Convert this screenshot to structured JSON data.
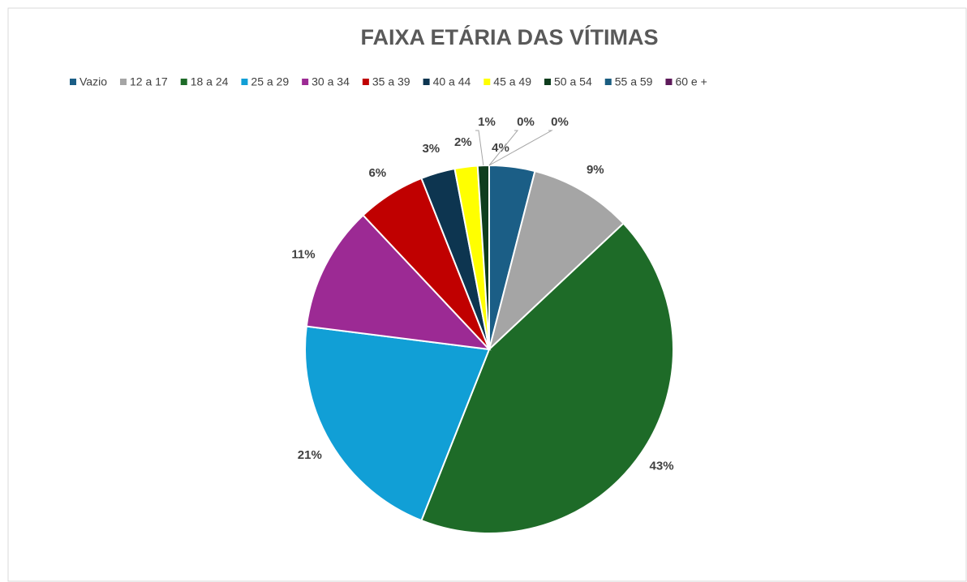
{
  "chart_data": {
    "type": "pie",
    "title": "FAIXA ETÁRIA DAS VÍTIMAS",
    "categories": [
      "Vazio",
      "12 a 17",
      "18 a 24",
      "25 a 29",
      "30 a 34",
      "35 a 39",
      "40 a 44",
      "45 a 49",
      "50 a 54",
      "55 a 59",
      "60 e +"
    ],
    "values": [
      4,
      9,
      43,
      21,
      11,
      6,
      3,
      2,
      1,
      0,
      0
    ],
    "value_labels": [
      "4%",
      "9%",
      "43%",
      "21%",
      "11%",
      "6%",
      "3%",
      "2%",
      "1%",
      "0%",
      "0%"
    ],
    "colors": [
      "#1b5e86",
      "#a5a5a5",
      "#1e6b28",
      "#119fd6",
      "#9c2a94",
      "#c00000",
      "#0d3550",
      "#ffff00",
      "#0f3d1d",
      "#1a5d80",
      "#5d1a5a"
    ],
    "legend": "top"
  }
}
